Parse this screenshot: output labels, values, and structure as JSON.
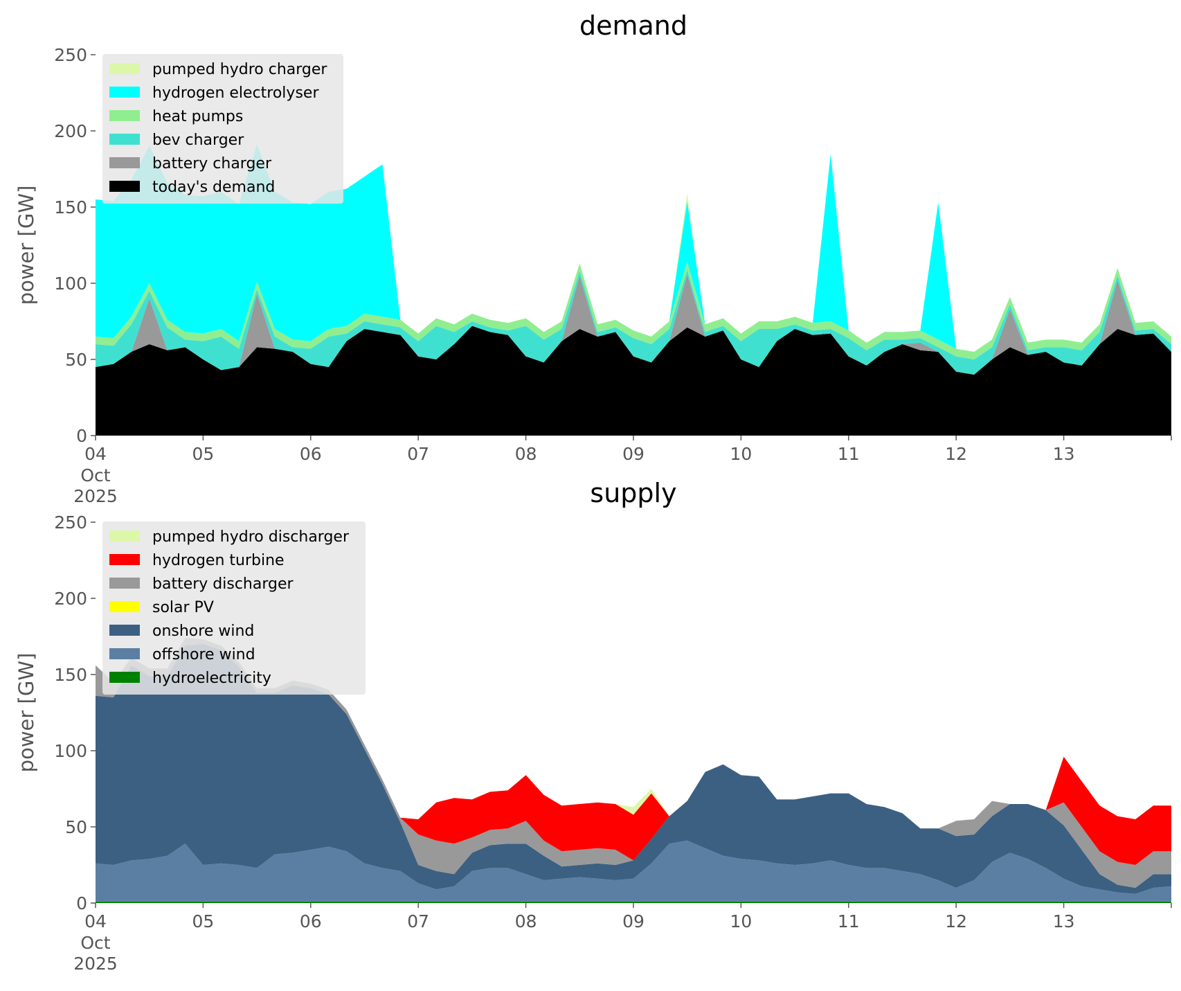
{
  "chart_data": [
    {
      "type": "area",
      "stacked": true,
      "title": "demand",
      "ylabel": "power [GW]",
      "ylim": [
        0,
        250
      ],
      "yticks": [
        "0",
        "50",
        "100",
        "150",
        "200",
        "250"
      ],
      "xlim": [
        0,
        240
      ],
      "xticks": [
        {
          "h": 0,
          "label": "04",
          "sub1": "Oct",
          "sub2": "2025"
        },
        {
          "h": 24,
          "label": "05"
        },
        {
          "h": 48,
          "label": "06"
        },
        {
          "h": 72,
          "label": "07"
        },
        {
          "h": 96,
          "label": "08"
        },
        {
          "h": 120,
          "label": "09"
        },
        {
          "h": 144,
          "label": "10"
        },
        {
          "h": 168,
          "label": "11"
        },
        {
          "h": 192,
          "label": "12"
        },
        {
          "h": 216,
          "label": "13"
        },
        {
          "h": 240,
          "label": ""
        }
      ],
      "grid": false,
      "legend_position": "upper-left",
      "x_hours": [
        0,
        4,
        8,
        12,
        16,
        20,
        24,
        28,
        32,
        36,
        40,
        44,
        48,
        52,
        56,
        60,
        64,
        68,
        72,
        76,
        80,
        84,
        88,
        92,
        96,
        100,
        104,
        108,
        112,
        116,
        120,
        124,
        128,
        132,
        136,
        140,
        144,
        148,
        152,
        156,
        160,
        164,
        168,
        172,
        176,
        180,
        184,
        188,
        192,
        196,
        200,
        204,
        208,
        212,
        216,
        220,
        224,
        228,
        232,
        236,
        240
      ],
      "series": [
        {
          "name": "today's demand",
          "color": "#000000",
          "values": [
            45,
            47,
            55,
            60,
            56,
            58,
            50,
            43,
            45,
            58,
            57,
            55,
            47,
            45,
            62,
            70,
            68,
            66,
            52,
            50,
            60,
            72,
            68,
            66,
            52,
            48,
            62,
            70,
            65,
            68,
            52,
            48,
            62,
            71,
            65,
            69,
            50,
            45,
            62,
            70,
            66,
            67,
            52,
            46,
            55,
            60,
            56,
            55,
            42,
            40,
            50,
            58,
            53,
            55,
            48,
            46,
            60,
            70,
            66,
            67,
            55
          ]
        },
        {
          "name": "battery charger",
          "color": "#999999",
          "values": [
            0,
            0,
            0,
            30,
            0,
            0,
            0,
            0,
            0,
            35,
            0,
            0,
            0,
            0,
            0,
            0,
            0,
            0,
            0,
            0,
            0,
            0,
            0,
            0,
            0,
            0,
            0,
            35,
            0,
            0,
            0,
            0,
            0,
            35,
            0,
            0,
            0,
            0,
            0,
            0,
            0,
            0,
            0,
            0,
            0,
            0,
            5,
            0,
            0,
            0,
            0,
            25,
            0,
            0,
            0,
            0,
            0,
            32,
            0,
            0,
            0
          ]
        },
        {
          "name": "bev charger",
          "color": "#40e0d0",
          "values": [
            15,
            12,
            18,
            5,
            15,
            5,
            12,
            22,
            12,
            3,
            8,
            3,
            10,
            20,
            5,
            5,
            5,
            5,
            10,
            22,
            8,
            3,
            3,
            3,
            20,
            15,
            8,
            3,
            3,
            3,
            12,
            12,
            8,
            3,
            3,
            3,
            12,
            25,
            8,
            3,
            3,
            3,
            12,
            10,
            8,
            3,
            3,
            3,
            10,
            10,
            8,
            3,
            3,
            3,
            10,
            10,
            8,
            3,
            3,
            3,
            5
          ]
        },
        {
          "name": "heat pumps",
          "color": "#90ee90",
          "values": [
            5,
            5,
            5,
            5,
            5,
            5,
            5,
            5,
            5,
            5,
            5,
            5,
            5,
            5,
            5,
            5,
            5,
            5,
            5,
            5,
            5,
            5,
            5,
            5,
            5,
            5,
            5,
            5,
            5,
            5,
            5,
            5,
            5,
            5,
            5,
            5,
            5,
            5,
            5,
            5,
            5,
            5,
            5,
            5,
            5,
            5,
            5,
            5,
            5,
            5,
            5,
            5,
            5,
            5,
            5,
            5,
            5,
            5,
            5,
            5,
            5
          ]
        },
        {
          "name": "hydrogen electrolyser",
          "color": "#00ffff",
          "values": [
            90,
            90,
            90,
            90,
            90,
            90,
            90,
            90,
            90,
            90,
            90,
            90,
            90,
            90,
            90,
            90,
            100,
            0,
            0,
            0,
            0,
            0,
            0,
            0,
            0,
            0,
            0,
            0,
            0,
            0,
            0,
            0,
            0,
            40,
            0,
            0,
            0,
            0,
            0,
            0,
            0,
            110,
            0,
            0,
            0,
            0,
            0,
            90,
            0,
            0,
            0,
            0,
            0,
            0,
            0,
            0,
            0,
            0,
            0,
            0,
            0
          ]
        },
        {
          "name": "pumped hydro charger",
          "color": "#ddf7a9",
          "values": [
            0,
            0,
            0,
            0,
            0,
            0,
            0,
            0,
            0,
            0,
            0,
            0,
            0,
            0,
            0,
            0,
            0,
            0,
            0,
            0,
            0,
            0,
            0,
            0,
            0,
            0,
            0,
            0,
            0,
            0,
            0,
            0,
            0,
            5,
            0,
            0,
            0,
            0,
            0,
            0,
            0,
            0,
            0,
            0,
            0,
            0,
            0,
            0,
            0,
            0,
            0,
            0,
            0,
            0,
            0,
            0,
            0,
            0,
            0,
            0,
            0
          ]
        }
      ]
    },
    {
      "type": "area",
      "stacked": true,
      "title": "supply",
      "ylabel": "power [GW]",
      "ylim": [
        0,
        250
      ],
      "yticks": [
        "0",
        "50",
        "100",
        "150",
        "200",
        "250"
      ],
      "xlim": [
        0,
        240
      ],
      "xticks": [
        {
          "h": 0,
          "label": "04",
          "sub1": "Oct",
          "sub2": "2025"
        },
        {
          "h": 24,
          "label": "05"
        },
        {
          "h": 48,
          "label": "06"
        },
        {
          "h": 72,
          "label": "07"
        },
        {
          "h": 96,
          "label": "08"
        },
        {
          "h": 120,
          "label": "09"
        },
        {
          "h": 144,
          "label": "10"
        },
        {
          "h": 168,
          "label": "11"
        },
        {
          "h": 192,
          "label": "12"
        },
        {
          "h": 216,
          "label": "13"
        },
        {
          "h": 240,
          "label": ""
        }
      ],
      "grid": false,
      "legend_position": "upper-left",
      "x_hours": [
        0,
        4,
        8,
        12,
        16,
        20,
        24,
        28,
        32,
        36,
        40,
        44,
        48,
        52,
        56,
        60,
        64,
        68,
        72,
        76,
        80,
        84,
        88,
        92,
        96,
        100,
        104,
        108,
        112,
        116,
        120,
        124,
        128,
        132,
        136,
        140,
        144,
        148,
        152,
        156,
        160,
        164,
        168,
        172,
        176,
        180,
        184,
        188,
        192,
        196,
        200,
        204,
        208,
        212,
        216,
        220,
        224,
        228,
        232,
        236,
        240
      ],
      "series": [
        {
          "name": "hydroelectricity",
          "color": "#008000",
          "values": [
            1,
            1,
            1,
            1,
            1,
            1,
            1,
            1,
            1,
            1,
            1,
            1,
            1,
            1,
            1,
            1,
            1,
            1,
            1,
            1,
            1,
            1,
            1,
            1,
            1,
            1,
            1,
            1,
            1,
            1,
            1,
            1,
            1,
            1,
            1,
            1,
            1,
            1,
            1,
            1,
            1,
            1,
            1,
            1,
            1,
            1,
            1,
            1,
            1,
            1,
            1,
            1,
            1,
            1,
            1,
            1,
            1,
            1,
            1,
            1,
            1
          ]
        },
        {
          "name": "offshore wind",
          "color": "#5b7fa3",
          "values": [
            25,
            24,
            27,
            28,
            30,
            38,
            24,
            25,
            24,
            22,
            31,
            32,
            34,
            36,
            33,
            25,
            22,
            20,
            12,
            8,
            10,
            20,
            22,
            22,
            18,
            14,
            15,
            16,
            15,
            14,
            15,
            25,
            38,
            40,
            35,
            30,
            28,
            27,
            25,
            24,
            25,
            27,
            24,
            22,
            22,
            20,
            18,
            14,
            9,
            14,
            26,
            32,
            28,
            22,
            15,
            10,
            8,
            6,
            5,
            9,
            10
          ]
        },
        {
          "name": "onshore wind",
          "color": "#3b6082",
          "values": [
            110,
            110,
            128,
            120,
            118,
            130,
            145,
            140,
            130,
            115,
            106,
            110,
            106,
            100,
            90,
            75,
            55,
            32,
            12,
            12,
            8,
            12,
            15,
            16,
            20,
            16,
            8,
            8,
            10,
            10,
            12,
            16,
            18,
            26,
            50,
            60,
            55,
            55,
            42,
            43,
            44,
            44,
            47,
            42,
            40,
            38,
            30,
            34,
            34,
            30,
            30,
            32,
            36,
            38,
            35,
            24,
            10,
            5,
            4,
            9,
            8
          ]
        },
        {
          "name": "solar PV",
          "color": "#ffff00",
          "values": [
            0,
            0,
            0,
            0,
            0,
            0,
            0,
            0,
            0,
            0,
            0,
            0,
            0,
            0,
            0,
            0,
            0,
            0,
            0,
            0,
            0,
            0,
            0,
            0,
            0,
            0,
            0,
            0,
            0,
            0,
            0,
            0,
            0,
            0,
            0,
            0,
            0,
            0,
            0,
            0,
            0,
            0,
            0,
            0,
            0,
            0,
            0,
            0,
            0,
            0,
            0,
            0,
            0,
            0,
            0,
            0,
            0,
            0,
            0,
            0,
            0
          ]
        },
        {
          "name": "battery discharger",
          "color": "#999999",
          "values": [
            20,
            10,
            5,
            5,
            5,
            5,
            3,
            3,
            3,
            3,
            3,
            3,
            3,
            3,
            3,
            3,
            3,
            3,
            20,
            20,
            20,
            10,
            10,
            10,
            15,
            10,
            10,
            10,
            10,
            10,
            0,
            0,
            0,
            0,
            0,
            0,
            0,
            0,
            0,
            0,
            0,
            0,
            0,
            0,
            0,
            0,
            0,
            0,
            10,
            10,
            10,
            0,
            0,
            0,
            15,
            15,
            15,
            15,
            15,
            15,
            15
          ]
        },
        {
          "name": "hydrogen turbine",
          "color": "#ff0000",
          "values": [
            0,
            0,
            0,
            0,
            0,
            0,
            0,
            0,
            0,
            0,
            0,
            0,
            0,
            0,
            0,
            0,
            0,
            0,
            10,
            25,
            30,
            25,
            25,
            25,
            30,
            30,
            30,
            30,
            30,
            30,
            30,
            30,
            0,
            0,
            0,
            0,
            0,
            0,
            0,
            0,
            0,
            0,
            0,
            0,
            0,
            0,
            0,
            0,
            0,
            0,
            0,
            0,
            0,
            0,
            30,
            30,
            30,
            30,
            30,
            30,
            30
          ]
        },
        {
          "name": "pumped hydro discharger",
          "color": "#ddf7a9",
          "values": [
            0,
            0,
            0,
            0,
            0,
            0,
            0,
            0,
            0,
            0,
            0,
            0,
            0,
            0,
            0,
            0,
            0,
            0,
            0,
            0,
            0,
            0,
            0,
            0,
            0,
            0,
            0,
            0,
            0,
            0,
            5,
            3,
            0,
            0,
            0,
            0,
            0,
            0,
            0,
            0,
            0,
            0,
            0,
            0,
            0,
            0,
            0,
            0,
            0,
            0,
            0,
            0,
            0,
            0,
            0,
            0,
            0,
            0,
            0,
            0,
            0
          ]
        }
      ]
    }
  ]
}
